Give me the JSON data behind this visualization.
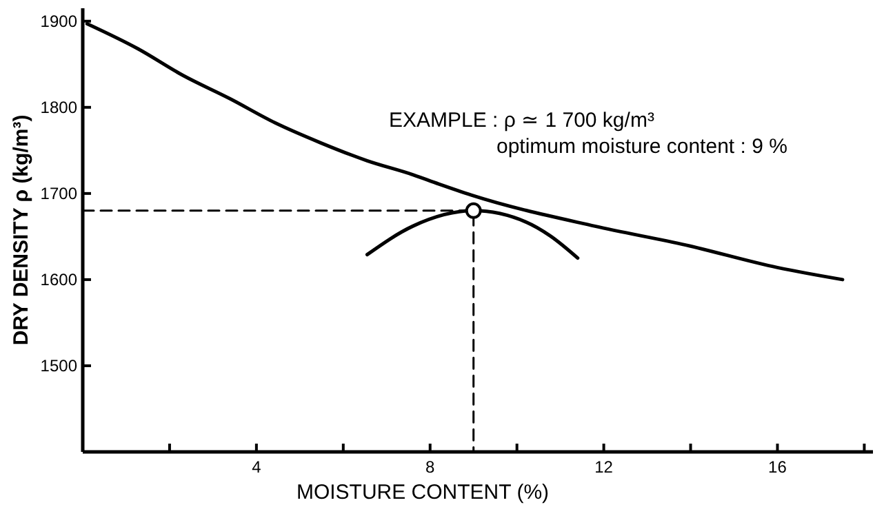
{
  "chart_data": {
    "type": "line",
    "xlabel": "MOISTURE CONTENT (%)",
    "ylabel": "DRY DENSITY ρ (kg/m³)",
    "annotations": [
      "EXAMPLE : ρ ≃ 1 700 kg/m³",
      "optimum moisture content : 9 %"
    ],
    "xlim": [
      0,
      18.2
    ],
    "ylim": [
      1400,
      1915
    ],
    "xticks": [
      {
        "value": 2,
        "label": null
      },
      4,
      {
        "value": 6,
        "label": null
      },
      8,
      {
        "value": 10,
        "label": null
      },
      12,
      {
        "value": 14,
        "label": null
      },
      16,
      {
        "value": 18,
        "label": null
      }
    ],
    "yticks": [
      1500,
      1600,
      1700,
      1800,
      1900
    ],
    "grid": false,
    "series": [
      {
        "color": "#000000",
        "line_style": "solid",
        "x": [
          0.1,
          1.27,
          2.31,
          3.39,
          4.43,
          5.47,
          6.55,
          7.59,
          8.2,
          8.96,
          11.8,
          13.9,
          16.0,
          17.5
        ],
        "values": [
          1897,
          1868,
          1837,
          1810,
          1782,
          1759,
          1738,
          1722,
          1711,
          1698,
          1662,
          1640,
          1614,
          1600
        ]
      },
      {
        "color": "#000000",
        "line_style": "solid",
        "x": [
          6.55,
          7.6,
          9,
          10.2,
          10.76,
          11.4
        ],
        "values": [
          1629,
          1662,
          1680,
          1667,
          1651,
          1625
        ]
      },
      {
        "color": "#000000",
        "line_style": "dashed",
        "x": [
          0,
          9,
          9
        ],
        "values": [
          1680,
          1680,
          1400
        ]
      },
      {
        "type": "scatter",
        "color": "#000000",
        "marker": "circle",
        "x": [
          9
        ],
        "values": [
          1680
        ]
      }
    ]
  }
}
